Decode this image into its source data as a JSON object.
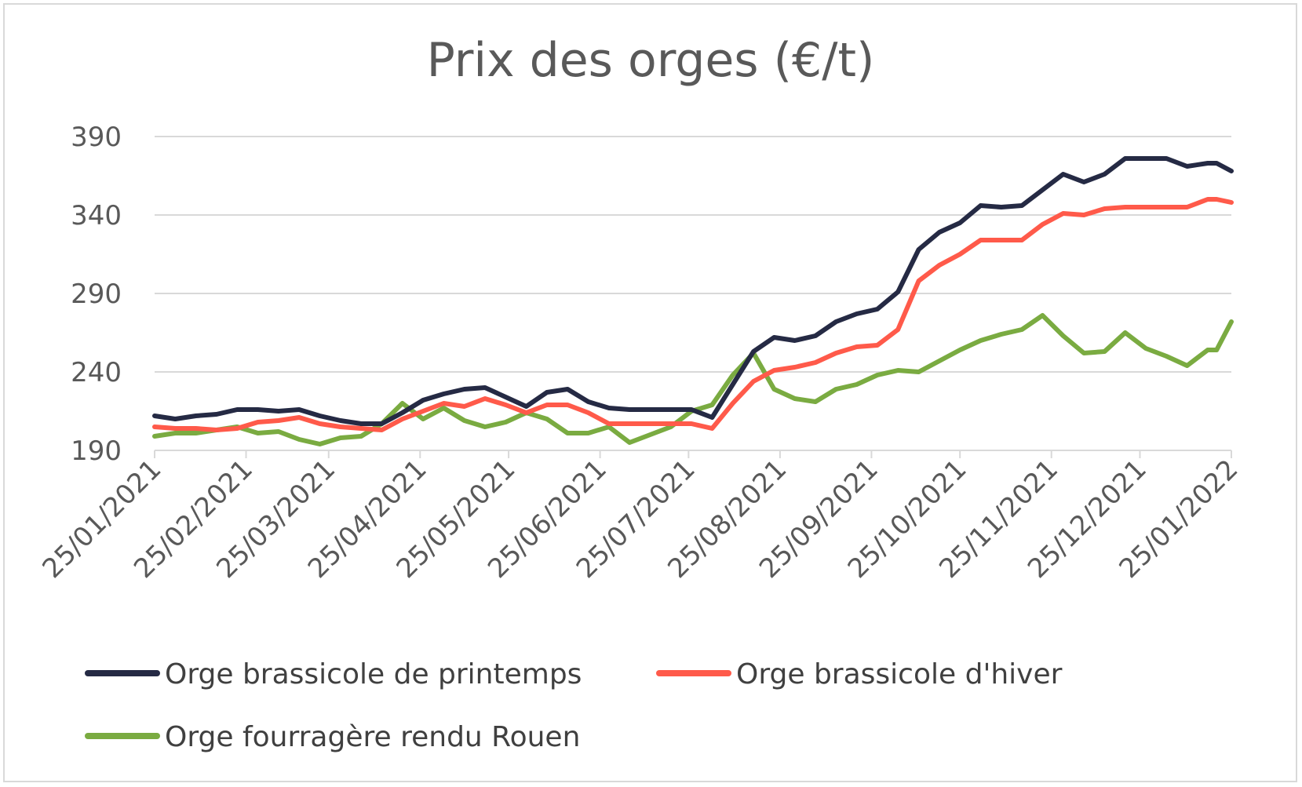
{
  "chart_data": {
    "type": "line",
    "title": "Prix des orges (€/t)",
    "xlabel": "",
    "ylabel": "",
    "ylim": [
      190,
      390
    ],
    "y_ticks": [
      "390",
      "340",
      "290",
      "240",
      "190"
    ],
    "y_tick_values": [
      390,
      340,
      290,
      240,
      190
    ],
    "x_tick_labels": [
      "25/01/2021",
      "25/02/2021",
      "25/03/2021",
      "25/04/2021",
      "25/05/2021",
      "25/06/2021",
      "25/07/2021",
      "25/08/2021",
      "25/09/2021",
      "25/10/2021",
      "25/11/2021",
      "25/12/2021",
      "25/01/2022"
    ],
    "grid": "horizontal",
    "legend_position": "bottom",
    "series": [
      {
        "name": "Orge brassicole de printemps",
        "color": "#252a44",
        "x": [
          "2021-01-25",
          "2021-02-01",
          "2021-02-08",
          "2021-02-15",
          "2021-02-22",
          "2021-03-01",
          "2021-03-08",
          "2021-03-15",
          "2021-03-22",
          "2021-03-29",
          "2021-04-05",
          "2021-04-12",
          "2021-04-19",
          "2021-04-26",
          "2021-05-03",
          "2021-05-10",
          "2021-05-17",
          "2021-05-24",
          "2021-05-31",
          "2021-06-07",
          "2021-06-14",
          "2021-06-21",
          "2021-06-28",
          "2021-07-05",
          "2021-07-12",
          "2021-07-19",
          "2021-07-26",
          "2021-08-02",
          "2021-08-09",
          "2021-08-16",
          "2021-08-23",
          "2021-08-30",
          "2021-09-06",
          "2021-09-13",
          "2021-09-20",
          "2021-09-27",
          "2021-10-04",
          "2021-10-11",
          "2021-10-18",
          "2021-10-25",
          "2021-11-01",
          "2021-11-08",
          "2021-11-15",
          "2021-11-22",
          "2021-11-29",
          "2021-12-06",
          "2021-12-13",
          "2021-12-20",
          "2021-12-27",
          "2022-01-03",
          "2022-01-10",
          "2022-01-17",
          "2022-01-20",
          "2022-01-25"
        ],
        "values": [
          212,
          210,
          212,
          213,
          216,
          216,
          215,
          216,
          212,
          209,
          207,
          207,
          214,
          222,
          226,
          229,
          230,
          224,
          218,
          227,
          229,
          221,
          217,
          216,
          216,
          216,
          216,
          211,
          232,
          253,
          262,
          260,
          263,
          272,
          277,
          280,
          291,
          318,
          329,
          335,
          346,
          345,
          346,
          356,
          366,
          361,
          366,
          376,
          376,
          376,
          371,
          373,
          373,
          368
        ]
      },
      {
        "name": "Orge brassicole d'hiver",
        "color": "#ff5a4a",
        "x": [
          "2021-01-25",
          "2021-02-01",
          "2021-02-08",
          "2021-02-15",
          "2021-02-22",
          "2021-03-01",
          "2021-03-08",
          "2021-03-15",
          "2021-03-22",
          "2021-03-29",
          "2021-04-05",
          "2021-04-12",
          "2021-04-19",
          "2021-04-26",
          "2021-05-03",
          "2021-05-10",
          "2021-05-17",
          "2021-05-24",
          "2021-05-31",
          "2021-06-07",
          "2021-06-14",
          "2021-06-21",
          "2021-06-28",
          "2021-07-05",
          "2021-07-12",
          "2021-07-19",
          "2021-07-26",
          "2021-08-02",
          "2021-08-09",
          "2021-08-16",
          "2021-08-23",
          "2021-08-30",
          "2021-09-06",
          "2021-09-13",
          "2021-09-20",
          "2021-09-27",
          "2021-10-04",
          "2021-10-11",
          "2021-10-18",
          "2021-10-25",
          "2021-11-01",
          "2021-11-08",
          "2021-11-15",
          "2021-11-22",
          "2021-11-29",
          "2021-12-06",
          "2021-12-13",
          "2021-12-20",
          "2021-12-27",
          "2022-01-03",
          "2022-01-10",
          "2022-01-17",
          "2022-01-20",
          "2022-01-25"
        ],
        "values": [
          205,
          204,
          204,
          203,
          204,
          208,
          209,
          211,
          207,
          205,
          204,
          203,
          210,
          215,
          220,
          218,
          223,
          219,
          214,
          219,
          219,
          214,
          207,
          207,
          207,
          207,
          207,
          204,
          220,
          234,
          241,
          243,
          246,
          252,
          256,
          257,
          267,
          298,
          308,
          315,
          324,
          324,
          324,
          334,
          341,
          340,
          344,
          345,
          345,
          345,
          345,
          350,
          350,
          348
        ]
      },
      {
        "name": "Orge fourragère rendu Rouen",
        "color": "#7aab41",
        "x": [
          "2021-01-25",
          "2021-02-01",
          "2021-02-08",
          "2021-02-15",
          "2021-02-22",
          "2021-03-01",
          "2021-03-08",
          "2021-03-15",
          "2021-03-22",
          "2021-03-29",
          "2021-04-05",
          "2021-04-12",
          "2021-04-19",
          "2021-04-26",
          "2021-05-03",
          "2021-05-10",
          "2021-05-17",
          "2021-05-24",
          "2021-05-31",
          "2021-06-07",
          "2021-06-14",
          "2021-06-21",
          "2021-06-28",
          "2021-07-05",
          "2021-07-12",
          "2021-07-19",
          "2021-07-26",
          "2021-08-02",
          "2021-08-09",
          "2021-08-16",
          "2021-08-23",
          "2021-08-30",
          "2021-09-06",
          "2021-09-13",
          "2021-09-20",
          "2021-09-27",
          "2021-10-04",
          "2021-10-11",
          "2021-10-18",
          "2021-10-25",
          "2021-11-01",
          "2021-11-08",
          "2021-11-15",
          "2021-11-22",
          "2021-11-29",
          "2021-12-06",
          "2021-12-13",
          "2021-12-20",
          "2021-12-27",
          "2022-01-03",
          "2022-01-10",
          "2022-01-17",
          "2022-01-20",
          "2022-01-25"
        ],
        "values": [
          199,
          201,
          201,
          203,
          205,
          201,
          202,
          197,
          194,
          198,
          199,
          207,
          220,
          210,
          217,
          209,
          205,
          208,
          214,
          210,
          201,
          201,
          205,
          195,
          200,
          205,
          215,
          219,
          238,
          252,
          229,
          223,
          221,
          229,
          232,
          238,
          241,
          240,
          247,
          254,
          260,
          264,
          267,
          276,
          263,
          252,
          253,
          265,
          255,
          250,
          244,
          254,
          254,
          272
        ]
      }
    ]
  }
}
